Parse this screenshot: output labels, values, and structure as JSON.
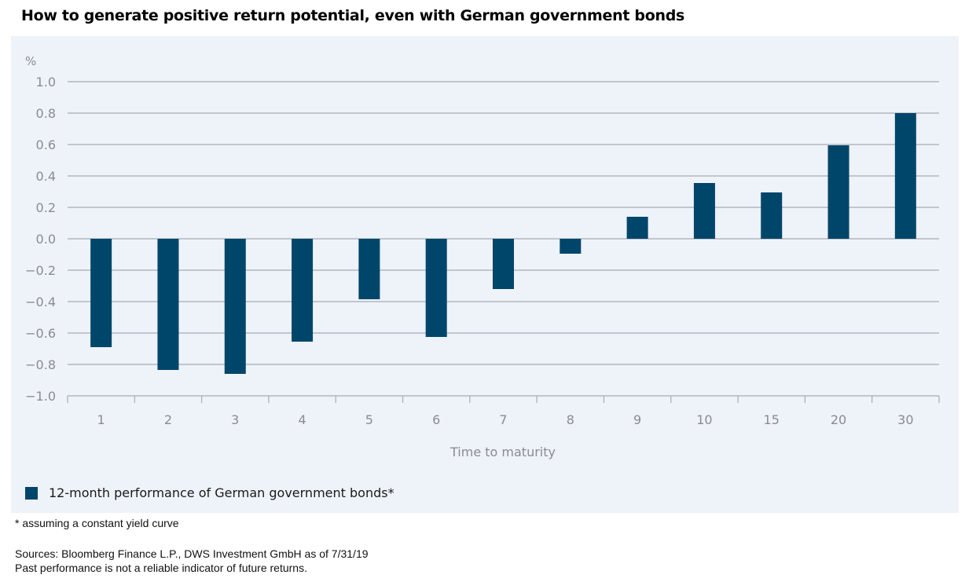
{
  "title": "How to generate positive return potential, even with German government bonds",
  "colors": {
    "bar": "#00466a",
    "panel": "#eef2f9",
    "grid": "#a9acb1",
    "tick_text": "#8a8c90"
  },
  "chart_data": {
    "type": "bar",
    "title": "How to generate positive return potential, even with German government bonds",
    "xlabel": "Time to maturity",
    "ylabel": "%",
    "ylim": [
      -1.0,
      1.0
    ],
    "yticks": [
      "1.0",
      "0.8",
      "0.6",
      "0.4",
      "0.2",
      "0.0",
      "−0.2",
      "−0.4",
      "−0.6",
      "−0.8",
      "−1.0"
    ],
    "ytick_values": [
      1.0,
      0.8,
      0.6,
      0.4,
      0.2,
      0.0,
      -0.2,
      -0.4,
      -0.6,
      -0.8,
      -1.0
    ],
    "grid": true,
    "categories": [
      "1",
      "2",
      "3",
      "4",
      "5",
      "6",
      "7",
      "8",
      "9",
      "10",
      "15",
      "20",
      "30"
    ],
    "series": [
      {
        "name": "12-month performance of German government bonds*",
        "values": [
          -0.69,
          -0.835,
          -0.86,
          -0.655,
          -0.385,
          -0.625,
          -0.32,
          -0.095,
          0.14,
          0.355,
          0.295,
          0.595,
          0.8
        ]
      }
    ],
    "legend_position": "bottom-left"
  },
  "legend": {
    "label": "12-month performance of German government bonds*"
  },
  "footnotes": {
    "assumption": "* assuming a constant yield curve",
    "sources": "Sources: Bloomberg Finance L.P., DWS Investment GmbH as of 7/31/19",
    "disclaimer": "Past performance is not a reliable indicator of future returns."
  }
}
